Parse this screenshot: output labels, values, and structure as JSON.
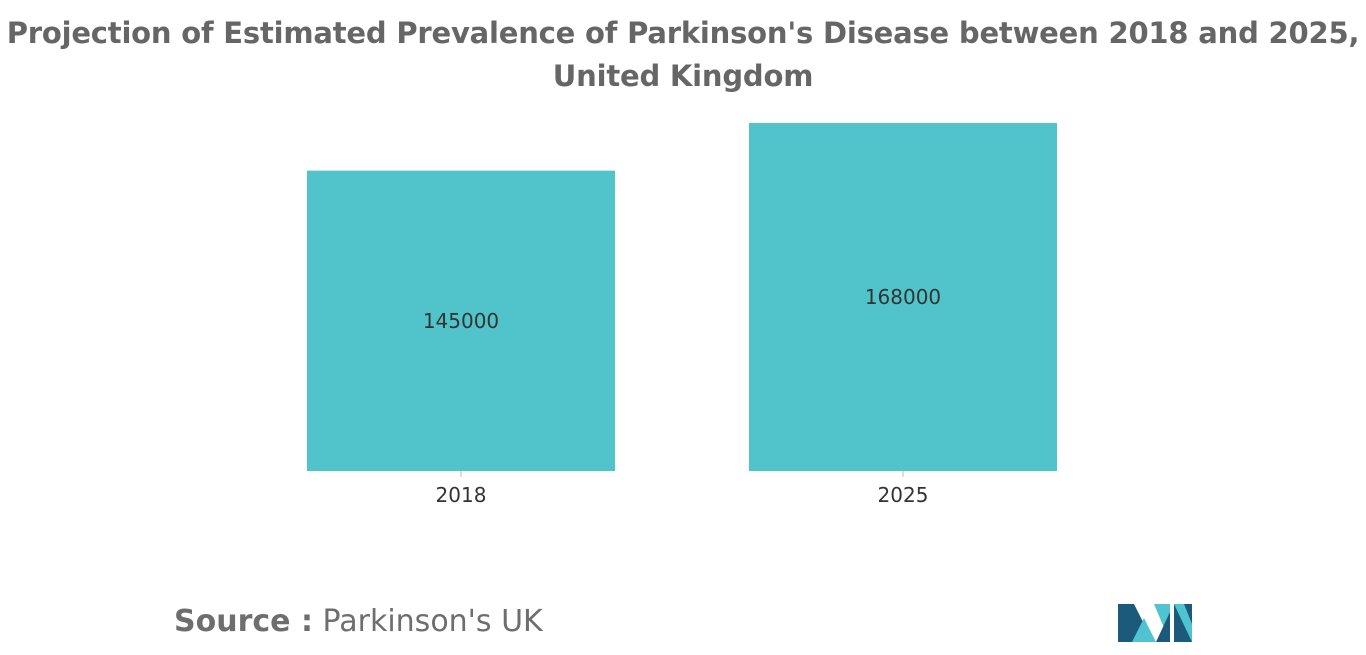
{
  "chart_data": {
    "type": "bar",
    "title": "Projection of Estimated Prevalence of Parkinson's Disease between 2018 and 2025, United Kingdom",
    "categories": [
      "2018",
      "2025"
    ],
    "values": [
      145000,
      168000
    ],
    "data_labels": [
      "145000",
      "168000"
    ],
    "ylim": [
      0,
      168000
    ],
    "y_axis_visible": false,
    "grid": false,
    "legend": "none",
    "bar_color": "#51c4cb"
  },
  "source": {
    "label": "Source :",
    "text": "Parkinson's UK"
  },
  "colors": {
    "bar": "#51c4cb",
    "title": "#666666",
    "axis_tick": "#bbbbbb",
    "label_text": "#333333",
    "logo_dark": "#1b5a7a",
    "logo_light": "#4fc3cf"
  }
}
